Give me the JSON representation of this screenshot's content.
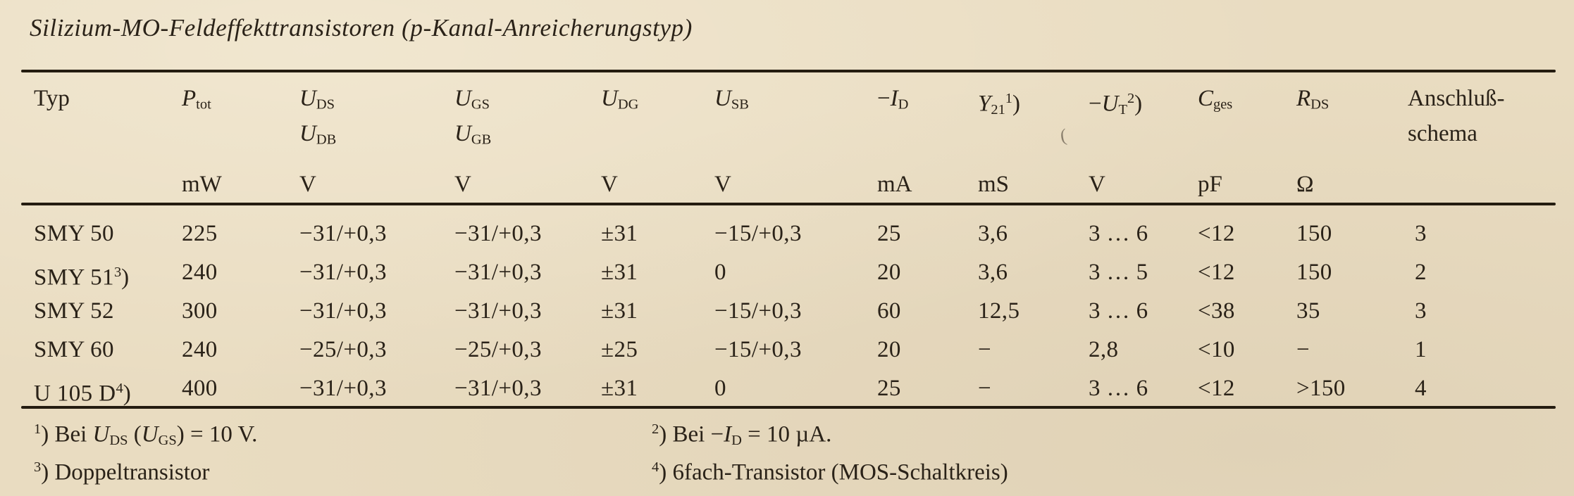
{
  "colors": {
    "paper": "#e9dcc1",
    "ink": "#2a2218",
    "rule": "#241c10"
  },
  "title": "Silizium-MO-Feldeffekttransistoren (p-Kanal-Anreicherungstyp)",
  "table": {
    "header_cols": [
      {
        "line1": [
          {
            "t": "Typ"
          }
        ],
        "line2": [],
        "unit": []
      },
      {
        "line1": [
          {
            "t": "P",
            "i": 1
          },
          {
            "t": "tot",
            "sub": 1
          }
        ],
        "line2": [],
        "unit": [
          {
            "t": "mW"
          }
        ]
      },
      {
        "line1": [
          {
            "t": "U",
            "i": 1
          },
          {
            "t": "DS",
            "sub": 1
          }
        ],
        "line2": [
          {
            "t": "U",
            "i": 1
          },
          {
            "t": "DB",
            "sub": 1
          }
        ],
        "unit": [
          {
            "t": "V"
          }
        ]
      },
      {
        "line1": [
          {
            "t": "U",
            "i": 1
          },
          {
            "t": "GS",
            "sub": 1
          }
        ],
        "line2": [
          {
            "t": "U",
            "i": 1
          },
          {
            "t": "GB",
            "sub": 1
          }
        ],
        "unit": [
          {
            "t": "V"
          }
        ]
      },
      {
        "line1": [
          {
            "t": "U",
            "i": 1
          },
          {
            "t": "DG",
            "sub": 1
          }
        ],
        "line2": [],
        "unit": [
          {
            "t": "V"
          }
        ]
      },
      {
        "line1": [
          {
            "t": "U",
            "i": 1
          },
          {
            "t": "SB",
            "sub": 1
          }
        ],
        "line2": [],
        "unit": [
          {
            "t": "V"
          }
        ]
      },
      {
        "line1": [
          {
            "t": "−"
          },
          {
            "t": "I",
            "i": 1
          },
          {
            "t": "D",
            "sub": 1
          }
        ],
        "line2": [],
        "unit": [
          {
            "t": "mA"
          }
        ]
      },
      {
        "line1": [
          {
            "t": "Y",
            "i": 1
          },
          {
            "t": "21",
            "sub": 1
          },
          {
            "t": "1",
            "sup": 1
          },
          {
            "t": ")"
          }
        ],
        "line2": [],
        "unit": [
          {
            "t": "mS"
          }
        ]
      },
      {
        "line1": [
          {
            "t": "−"
          },
          {
            "t": "U",
            "i": 1
          },
          {
            "t": "T",
            "sub": 1
          },
          {
            "t": "2",
            "sup": 1
          },
          {
            "t": ")"
          }
        ],
        "line2": [],
        "unit": [
          {
            "t": "V"
          }
        ]
      },
      {
        "line1": [
          {
            "t": "C",
            "i": 1
          },
          {
            "t": "ges",
            "sub": 1
          }
        ],
        "line2": [],
        "unit": [
          {
            "t": "pF"
          }
        ]
      },
      {
        "line1": [
          {
            "t": "R",
            "i": 1
          },
          {
            "t": "DS",
            "sub": 1
          }
        ],
        "line2": [],
        "unit": [
          {
            "t": "Ω"
          }
        ]
      },
      {
        "line1": [
          {
            "t": "Anschluß-"
          }
        ],
        "line2": [
          {
            "t": "schema"
          }
        ],
        "unit": []
      }
    ],
    "rows": [
      [
        [
          {
            "t": "SMY 50"
          }
        ],
        [
          {
            "t": "225"
          }
        ],
        [
          {
            "t": "−31/+0,3"
          }
        ],
        [
          {
            "t": "−31/+0,3"
          }
        ],
        [
          {
            "t": "±31"
          }
        ],
        [
          {
            "t": "−15/+0,3"
          }
        ],
        [
          {
            "t": "25"
          }
        ],
        [
          {
            "t": "3,6"
          }
        ],
        [
          {
            "t": "3 … 6"
          }
        ],
        [
          {
            "t": "<12"
          }
        ],
        [
          {
            "t": "150"
          }
        ],
        [
          {
            "t": "3"
          }
        ]
      ],
      [
        [
          {
            "t": "SMY 51"
          },
          {
            "t": "3",
            "sup": 1
          },
          {
            "t": ")"
          }
        ],
        [
          {
            "t": "240"
          }
        ],
        [
          {
            "t": "−31/+0,3"
          }
        ],
        [
          {
            "t": "−31/+0,3"
          }
        ],
        [
          {
            "t": "±31"
          }
        ],
        [
          {
            "t": "0"
          }
        ],
        [
          {
            "t": "20"
          }
        ],
        [
          {
            "t": "3,6"
          }
        ],
        [
          {
            "t": "3 … 5"
          }
        ],
        [
          {
            "t": "<12"
          }
        ],
        [
          {
            "t": "150"
          }
        ],
        [
          {
            "t": "2"
          }
        ]
      ],
      [
        [
          {
            "t": "SMY 52"
          }
        ],
        [
          {
            "t": "300"
          }
        ],
        [
          {
            "t": "−31/+0,3"
          }
        ],
        [
          {
            "t": "−31/+0,3"
          }
        ],
        [
          {
            "t": "±31"
          }
        ],
        [
          {
            "t": "−15/+0,3"
          }
        ],
        [
          {
            "t": "60"
          }
        ],
        [
          {
            "t": "12,5"
          }
        ],
        [
          {
            "t": "3 … 6"
          }
        ],
        [
          {
            "t": "<38"
          }
        ],
        [
          {
            "t": "35"
          }
        ],
        [
          {
            "t": "3"
          }
        ]
      ],
      [
        [
          {
            "t": "SMY 60"
          }
        ],
        [
          {
            "t": "240"
          }
        ],
        [
          {
            "t": "−25/+0,3"
          }
        ],
        [
          {
            "t": "−25/+0,3"
          }
        ],
        [
          {
            "t": "±25"
          }
        ],
        [
          {
            "t": "−15/+0,3"
          }
        ],
        [
          {
            "t": "20"
          }
        ],
        [
          {
            "t": "−"
          }
        ],
        [
          {
            "t": "2,8"
          }
        ],
        [
          {
            "t": "<10"
          }
        ],
        [
          {
            "t": "−"
          }
        ],
        [
          {
            "t": "1"
          }
        ]
      ],
      [
        [
          {
            "t": "U 105 D"
          },
          {
            "t": "4",
            "sup": 1
          },
          {
            "t": ")"
          }
        ],
        [
          {
            "t": "400"
          }
        ],
        [
          {
            "t": "−31/+0,3"
          }
        ],
        [
          {
            "t": "−31/+0,3"
          }
        ],
        [
          {
            "t": "±31"
          }
        ],
        [
          {
            "t": "0"
          }
        ],
        [
          {
            "t": "25"
          }
        ],
        [
          {
            "t": "−"
          }
        ],
        [
          {
            "t": "3 … 6"
          }
        ],
        [
          {
            "t": "<12"
          }
        ],
        [
          {
            "t": ">150"
          }
        ],
        [
          {
            "t": "4"
          }
        ]
      ]
    ]
  },
  "footnotes": [
    {
      "segments": [
        {
          "t": "1",
          "sup": 1
        },
        {
          "t": ") Bei "
        },
        {
          "t": "U",
          "i": 1
        },
        {
          "t": "DS",
          "sub": 1
        },
        {
          "t": " ("
        },
        {
          "t": "U",
          "i": 1
        },
        {
          "t": "GS",
          "sub": 1
        },
        {
          "t": ") = 10 V."
        }
      ]
    },
    {
      "segments": [
        {
          "t": "2",
          "sup": 1
        },
        {
          "t": ") Bei −"
        },
        {
          "t": "I",
          "i": 1
        },
        {
          "t": "D",
          "sub": 1
        },
        {
          "t": " = 10 µA."
        }
      ]
    },
    {
      "segments": [
        {
          "t": "3",
          "sup": 1
        },
        {
          "t": ") Doppeltransistor"
        }
      ]
    },
    {
      "segments": [
        {
          "t": "4",
          "sup": 1
        },
        {
          "t": ") 6fach-Transistor (MOS-Schaltkreis)"
        }
      ]
    }
  ],
  "artifact": "("
}
